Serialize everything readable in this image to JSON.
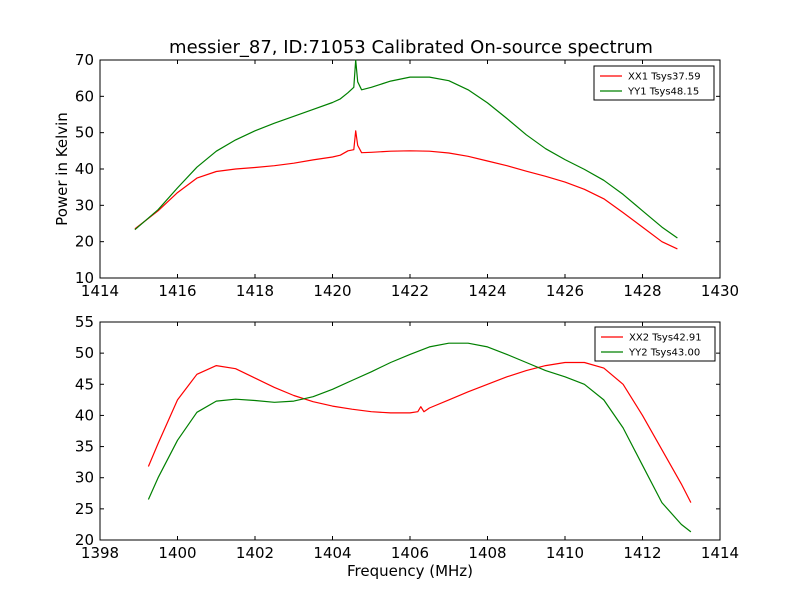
{
  "figure": {
    "title": "messier_87, ID:71053 Calibrated On-source spectrum"
  },
  "chart_data": [
    {
      "type": "line",
      "title": "messier_87, ID:71053 Calibrated On-source spectrum",
      "xlabel": "",
      "ylabel": "Power in Kelvin",
      "xlim": [
        1414,
        1430
      ],
      "ylim": [
        10,
        70
      ],
      "xticks": [
        "1414",
        "1416",
        "1418",
        "1420",
        "1422",
        "1424",
        "1426",
        "1428",
        "1430"
      ],
      "yticks": [
        "10",
        "20",
        "30",
        "40",
        "50",
        "60",
        "70"
      ],
      "grid": false,
      "legend_position": "top-right",
      "series": [
        {
          "name": "XX1 Tsys37.59",
          "color": "#ff0000",
          "x": [
            1414.9,
            1415.5,
            1416.0,
            1416.5,
            1417.0,
            1417.5,
            1418.0,
            1418.5,
            1419.0,
            1419.5,
            1420.0,
            1420.2,
            1420.4,
            1420.55,
            1420.6,
            1420.65,
            1420.75,
            1421.0,
            1421.5,
            1422.0,
            1422.5,
            1423.0,
            1423.5,
            1424.0,
            1424.5,
            1425.0,
            1425.5,
            1426.0,
            1426.5,
            1427.0,
            1427.5,
            1428.0,
            1428.5,
            1428.9
          ],
          "y": [
            23.5,
            28.5,
            33.5,
            37.5,
            39.3,
            40.0,
            40.4,
            40.9,
            41.6,
            42.5,
            43.3,
            43.8,
            45.0,
            45.3,
            50.5,
            46.5,
            44.5,
            44.6,
            44.9,
            45.0,
            44.9,
            44.4,
            43.5,
            42.2,
            40.9,
            39.4,
            38.0,
            36.4,
            34.4,
            31.8,
            28.0,
            24.0,
            20.0,
            18.0
          ]
        },
        {
          "name": "YY1 Tsys48.15",
          "color": "#008000",
          "x": [
            1414.9,
            1415.5,
            1416.0,
            1416.5,
            1417.0,
            1417.5,
            1418.0,
            1418.5,
            1419.0,
            1419.5,
            1420.0,
            1420.2,
            1420.4,
            1420.55,
            1420.6,
            1420.65,
            1420.75,
            1421.0,
            1421.5,
            1422.0,
            1422.5,
            1423.0,
            1423.5,
            1424.0,
            1424.5,
            1425.0,
            1425.5,
            1426.0,
            1426.5,
            1427.0,
            1427.5,
            1428.0,
            1428.5,
            1428.9
          ],
          "y": [
            23.3,
            28.8,
            34.8,
            40.5,
            44.9,
            48.0,
            50.5,
            52.6,
            54.5,
            56.4,
            58.3,
            59.3,
            61.0,
            62.5,
            70.0,
            64.0,
            61.8,
            62.5,
            64.2,
            65.3,
            65.3,
            64.3,
            61.8,
            58.2,
            53.9,
            49.4,
            45.6,
            42.6,
            39.9,
            36.9,
            33.0,
            28.5,
            24.0,
            21.0
          ]
        }
      ]
    },
    {
      "type": "line",
      "title": "",
      "xlabel": "Frequency (MHz)",
      "ylabel": "",
      "xlim": [
        1398,
        1414
      ],
      "ylim": [
        20,
        55
      ],
      "xticks": [
        "1398",
        "1400",
        "1402",
        "1404",
        "1406",
        "1408",
        "1410",
        "1412",
        "1414"
      ],
      "yticks": [
        "20",
        "25",
        "30",
        "35",
        "40",
        "45",
        "50",
        "55"
      ],
      "grid": false,
      "legend_position": "top-right",
      "series": [
        {
          "name": "XX2 Tsys42.91",
          "color": "#ff0000",
          "x": [
            1399.25,
            1399.5,
            1400.0,
            1400.5,
            1401.0,
            1401.5,
            1402.0,
            1402.5,
            1403.0,
            1403.5,
            1404.0,
            1404.5,
            1405.0,
            1405.5,
            1406.0,
            1406.2,
            1406.28,
            1406.36,
            1406.5,
            1407.0,
            1407.5,
            1408.0,
            1408.5,
            1409.0,
            1409.5,
            1410.0,
            1410.5,
            1411.0,
            1411.5,
            1412.0,
            1412.5,
            1413.0,
            1413.25
          ],
          "y": [
            31.8,
            35.5,
            42.5,
            46.6,
            48.0,
            47.5,
            46.0,
            44.5,
            43.2,
            42.2,
            41.5,
            41.0,
            40.6,
            40.4,
            40.4,
            40.6,
            41.4,
            40.6,
            41.2,
            42.5,
            43.8,
            45.0,
            46.2,
            47.2,
            48.0,
            48.5,
            48.5,
            47.6,
            45.0,
            40.0,
            34.5,
            29.0,
            26.0
          ]
        },
        {
          "name": "YY2 Tsys43.00",
          "color": "#008000",
          "x": [
            1399.25,
            1399.5,
            1400.0,
            1400.5,
            1401.0,
            1401.5,
            1402.0,
            1402.5,
            1403.0,
            1403.5,
            1404.0,
            1404.5,
            1405.0,
            1405.5,
            1406.0,
            1406.5,
            1407.0,
            1407.5,
            1408.0,
            1408.5,
            1409.0,
            1409.5,
            1410.0,
            1410.5,
            1411.0,
            1411.5,
            1412.0,
            1412.5,
            1413.0,
            1413.25
          ],
          "y": [
            26.5,
            30.0,
            36.0,
            40.5,
            42.3,
            42.6,
            42.4,
            42.1,
            42.3,
            43.0,
            44.2,
            45.6,
            47.0,
            48.5,
            49.8,
            51.0,
            51.6,
            51.6,
            51.0,
            49.8,
            48.5,
            47.2,
            46.2,
            45.0,
            42.5,
            38.0,
            32.0,
            26.0,
            22.5,
            21.3
          ]
        }
      ]
    }
  ]
}
